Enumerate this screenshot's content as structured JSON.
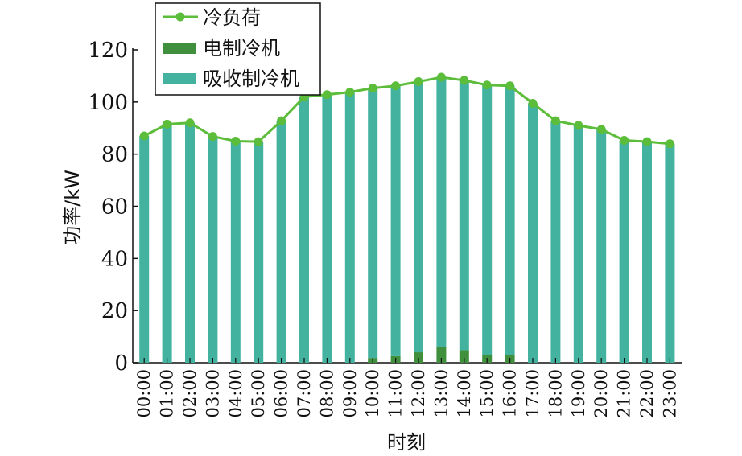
{
  "chart_data": {
    "type": "bar",
    "title": "",
    "xlabel": "时刻",
    "ylabel": "功率/kW",
    "ylim": [
      0,
      120
    ],
    "yticks": [
      0,
      20,
      40,
      60,
      80,
      100,
      120
    ],
    "grid": false,
    "legend_position": "top-left",
    "categories": [
      "00:00",
      "01:00",
      "02:00",
      "03:00",
      "04:00",
      "05:00",
      "06:00",
      "07:00",
      "08:00",
      "09:00",
      "10:00",
      "11:00",
      "12:00",
      "13:00",
      "14:00",
      "15:00",
      "16:00",
      "17:00",
      "18:00",
      "19:00",
      "20:00",
      "21:00",
      "22:00",
      "23:00"
    ],
    "series": [
      {
        "name": "冷负荷",
        "kind": "line",
        "color": "#5cbd3a",
        "values": [
          87.0,
          91.5,
          92.0,
          86.8,
          85.0,
          84.8,
          92.8,
          102.0,
          102.8,
          103.8,
          105.3,
          106.2,
          107.8,
          109.5,
          108.3,
          106.5,
          106.2,
          99.5,
          92.8,
          91.0,
          89.5,
          85.3,
          84.8,
          84.0
        ]
      },
      {
        "name": "电制冷机",
        "kind": "bar",
        "color": "#3f8f3c",
        "values": [
          0,
          0,
          0,
          0,
          0,
          0,
          0,
          0,
          0,
          0,
          1.8,
          2.5,
          4.0,
          6.0,
          4.8,
          3.0,
          2.8,
          0,
          0,
          0,
          0,
          0,
          0,
          0
        ]
      },
      {
        "name": "吸收制冷机",
        "kind": "bar",
        "color": "#43b29f",
        "values": [
          87.0,
          91.5,
          92.0,
          86.8,
          85.0,
          84.8,
          92.8,
          102.0,
          102.8,
          103.8,
          103.5,
          103.7,
          103.8,
          103.5,
          103.5,
          103.5,
          103.4,
          99.5,
          92.8,
          91.0,
          89.5,
          85.3,
          84.8,
          84.0
        ]
      }
    ]
  }
}
